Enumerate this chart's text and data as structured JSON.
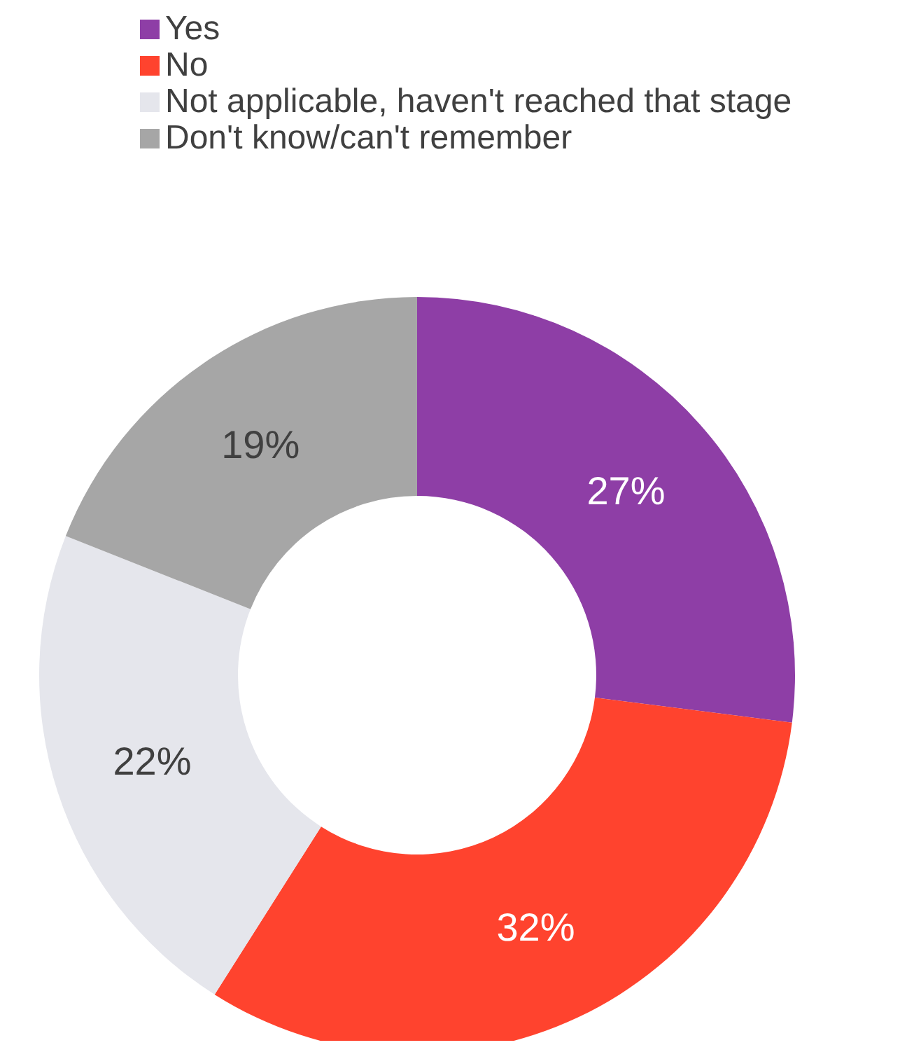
{
  "chart_data": {
    "type": "donut",
    "categories": [
      "Yes",
      "No",
      "Not applicable, haven't reached that stage",
      "Don't know/can't remember"
    ],
    "values": [
      27,
      32,
      22,
      19
    ],
    "colors": [
      "#8e3ea6",
      "#ff432e",
      "#e5e6ec",
      "#a6a6a6"
    ],
    "value_labels": [
      "27%",
      "32%",
      "22%",
      "19%"
    ],
    "legend": "top"
  }
}
